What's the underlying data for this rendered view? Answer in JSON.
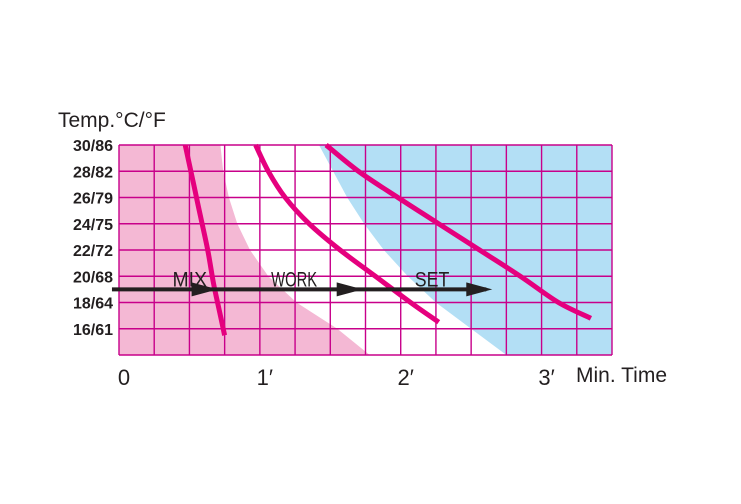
{
  "chart_data": {
    "type": "line",
    "ylabel": "Temp.°C/°F",
    "xlabel": "Min. Time",
    "y_ticks": [
      "30/86",
      "28/82",
      "26/79",
      "24/75",
      "22/72",
      "20/68",
      "18/64",
      "16/61"
    ],
    "x_ticks": [
      "0",
      "1′",
      "2′",
      "3′"
    ],
    "xlim": [
      0,
      3.5
    ],
    "y_range_celsius": [
      14,
      30
    ],
    "grid": true,
    "zones": [
      {
        "label": "MIX",
        "color": "#f4b8d4",
        "boundary_x": [
          0.72,
          0.74,
          0.78,
          0.84,
          0.93,
          1.06,
          1.26,
          1.55,
          1.78
        ]
      },
      {
        "label": "WORK",
        "color": "#ffffff"
      },
      {
        "label": "SET",
        "color": "#b3dff5",
        "boundary_x": [
          1.42,
          1.52,
          1.62,
          1.74,
          1.88,
          2.05,
          2.25,
          2.5,
          2.75
        ]
      }
    ],
    "boundary_y": [
      30,
      28,
      26,
      24,
      22,
      20,
      18,
      16,
      14
    ],
    "series": [
      {
        "color": "#e5007e",
        "x": [
          0.47,
          0.53,
          0.58,
          0.63,
          0.67,
          0.71,
          0.75
        ],
        "y": [
          30,
          27,
          24.5,
          22,
          19.5,
          17.5,
          15.5
        ]
      },
      {
        "color": "#e5007e",
        "x": [
          0.97,
          1.06,
          1.18,
          1.35,
          1.57,
          1.82,
          2.07,
          2.27
        ],
        "y": [
          30,
          28,
          26,
          24,
          22,
          20,
          18,
          16.5
        ]
      },
      {
        "color": "#e5007e",
        "x": [
          1.47,
          1.7,
          1.98,
          2.27,
          2.56,
          2.85,
          3.12,
          3.35
        ],
        "y": [
          30,
          28,
          26,
          24,
          22,
          20,
          18,
          16.8
        ]
      }
    ],
    "reference_line": {
      "color": "#231f20",
      "y": 19,
      "x_start": -0.05,
      "arrows_at_x": [
        0.7,
        1.73,
        2.65
      ]
    },
    "phase_labels": [
      {
        "text": "MIX",
        "x": 0.38,
        "y": 20
      },
      {
        "text": "WORK",
        "x": 1.08,
        "y": 20
      },
      {
        "text": "SET",
        "x": 2.1,
        "y": 20
      }
    ]
  }
}
